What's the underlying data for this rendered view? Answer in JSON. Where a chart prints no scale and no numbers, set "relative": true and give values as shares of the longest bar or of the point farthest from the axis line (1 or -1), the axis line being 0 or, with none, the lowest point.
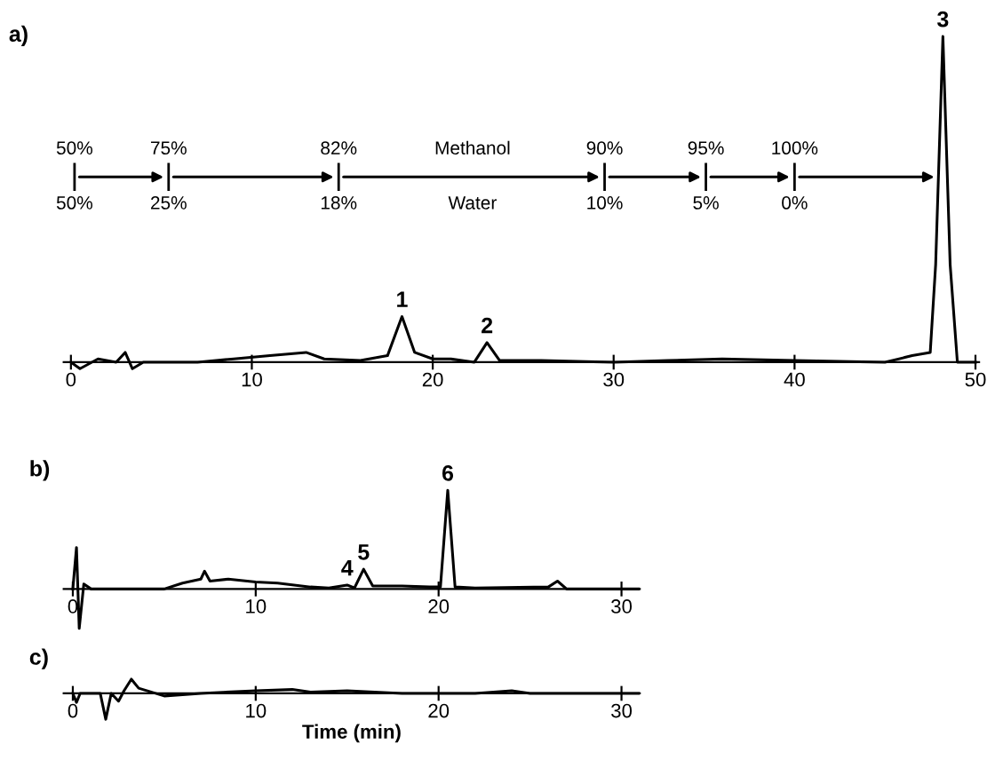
{
  "chart_data": [
    {
      "type": "line",
      "title": "a)",
      "relative": true,
      "tick_labels": "x",
      "xlim": [
        -0.4,
        50.2
      ],
      "xticks": [
        0,
        10,
        20,
        30,
        40,
        50
      ],
      "x": [
        0,
        0.5,
        1.5,
        2.5,
        3,
        3.4,
        4,
        7,
        9,
        11,
        13,
        14,
        16,
        17.5,
        18.3,
        19,
        20,
        21,
        22.3,
        23,
        23.7,
        26,
        30,
        33,
        36,
        40,
        45,
        46.5,
        47.5,
        47.8,
        48.2,
        48.6,
        49,
        50
      ],
      "series": [
        {
          "color": "#000000",
          "values": [
            0,
            -0.02,
            0.01,
            0,
            0.03,
            -0.02,
            0,
            0,
            0.01,
            0.02,
            0.03,
            0.01,
            0.005,
            0.02,
            0.14,
            0.03,
            0.01,
            0.01,
            0,
            0.06,
            0.005,
            0.005,
            0,
            0.005,
            0.01,
            0.005,
            0,
            0.02,
            0.03,
            0.3,
            1.0,
            0.3,
            0,
            0
          ]
        }
      ],
      "annotations": [
        {
          "text": "1",
          "x": 18.3,
          "y": 0.14
        },
        {
          "text": "2",
          "x": 23,
          "y": 0.06
        },
        {
          "text": "3",
          "x": 48.2,
          "y": 1.0
        },
        "50%",
        "75%",
        "82%",
        "Methanol",
        "90%",
        "95%",
        "100%",
        "50%",
        "25%",
        "18%",
        "Water",
        "10%",
        "5%",
        "0%"
      ]
    },
    {
      "type": "line",
      "title": "b)",
      "relative": true,
      "tick_labels": "x",
      "xlim": [
        -0.5,
        31
      ],
      "xticks": [
        0,
        10,
        20,
        30
      ],
      "x": [
        0,
        0.2,
        0.35,
        0.6,
        1,
        5,
        6,
        7,
        7.2,
        7.5,
        8.5,
        10,
        11.2,
        13,
        14,
        15,
        15.4,
        15.9,
        16.4,
        18,
        19.5,
        20.1,
        20.5,
        20.9,
        22,
        26,
        26.5,
        27,
        31
      ],
      "series": [
        {
          "color": "#000000",
          "values": [
            0,
            0.42,
            -0.4,
            0.05,
            0,
            0,
            0.06,
            0.1,
            0.18,
            0.08,
            0.1,
            0.07,
            0.06,
            0.02,
            0.01,
            0.04,
            0.01,
            0.2,
            0.03,
            0.03,
            0.02,
            0.02,
            1.0,
            0.02,
            0.01,
            0.02,
            0.08,
            0,
            0
          ]
        }
      ],
      "annotations": [
        {
          "text": "4",
          "x": 15,
          "y": 0.04
        },
        {
          "text": "5",
          "x": 15.9,
          "y": 0.2
        },
        {
          "text": "6",
          "x": 20.5,
          "y": 1.0
        }
      ]
    },
    {
      "type": "line",
      "title": "c)",
      "relative": true,
      "tick_labels": "x",
      "xlim": [
        -0.5,
        31
      ],
      "xticks": [
        0,
        10,
        20,
        30
      ],
      "xlabel": "Time (min)",
      "x": [
        0,
        0.2,
        0.4,
        1.5,
        1.8,
        2.1,
        2.5,
        2.8,
        3.2,
        3.6,
        5,
        7,
        10,
        12,
        13,
        15,
        18,
        22,
        24,
        25,
        31
      ],
      "series": [
        {
          "color": "#000000",
          "values": [
            0,
            -0.35,
            0,
            0,
            -1.0,
            0,
            -0.3,
            0.1,
            0.55,
            0.2,
            -0.1,
            0,
            0.1,
            0.15,
            0.05,
            0.1,
            0,
            0,
            0.1,
            0,
            0
          ]
        }
      ]
    }
  ]
}
